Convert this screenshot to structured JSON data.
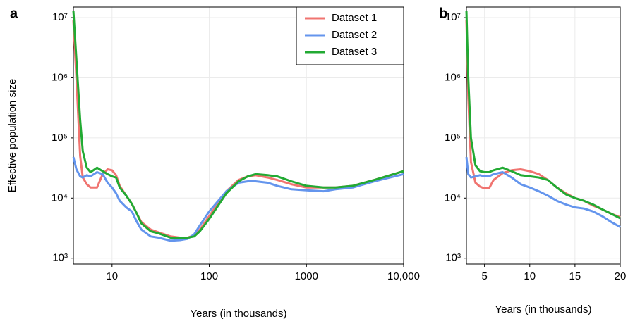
{
  "chart_data": [
    {
      "type": "line",
      "panel_label": "a",
      "xlabel": "Years (in thousands)",
      "ylabel": "Effective population size",
      "xscale": "log",
      "yscale": "log",
      "grid": true,
      "legend": "upper right",
      "xlim": [
        4,
        10000
      ],
      "xticks": [
        10,
        100,
        1000,
        {
          "value": 10000,
          "label": "10,000"
        }
      ],
      "ylim": [
        800,
        15000000
      ],
      "yticks": [
        {
          "value": 1000,
          "label": "10³"
        },
        {
          "value": 10000,
          "label": "10⁴"
        },
        {
          "value": 100000,
          "label": "10⁵"
        },
        {
          "value": 1000000,
          "label": "10⁶"
        },
        {
          "value": 10000000,
          "label": "10⁷"
        }
      ],
      "x": [
        4,
        4.3,
        4.7,
        5,
        5.5,
        6,
        7,
        8,
        9,
        10,
        11,
        12,
        14,
        16,
        18,
        20,
        25,
        30,
        40,
        50,
        60,
        70,
        80,
        100,
        150,
        200,
        250,
        300,
        400,
        500,
        700,
        1000,
        1500,
        2000,
        3000,
        5000,
        10000
      ],
      "series": [
        {
          "name": "Dataset 1",
          "color": "#f07470",
          "values": [
            9000000,
            1000000,
            50000,
            22000,
            17000,
            15000,
            15000,
            25000,
            30000,
            29000,
            24000,
            16000,
            11000,
            8000,
            5500,
            4000,
            3000,
            2700,
            2300,
            2200,
            2200,
            2400,
            3000,
            5000,
            13000,
            20000,
            23000,
            24000,
            22000,
            20000,
            17000,
            15000,
            15000,
            15000,
            16000,
            20000,
            28000
          ]
        },
        {
          "name": "Dataset 2",
          "color": "#6495ed",
          "values": [
            48000,
            30000,
            23000,
            22000,
            24000,
            23000,
            27000,
            25000,
            18000,
            15000,
            12000,
            9000,
            7000,
            6000,
            4000,
            3000,
            2300,
            2200,
            1950,
            2000,
            2100,
            2500,
            3500,
            6000,
            13000,
            18000,
            19000,
            19000,
            18000,
            16000,
            14000,
            13500,
            13000,
            14000,
            15000,
            19000,
            25000
          ]
        },
        {
          "name": "Dataset 3",
          "color": "#22aa33",
          "values": [
            13000000,
            2000000,
            200000,
            60000,
            32000,
            27000,
            32000,
            28000,
            25000,
            23000,
            22000,
            15000,
            11000,
            8000,
            5500,
            3800,
            2800,
            2600,
            2200,
            2200,
            2200,
            2300,
            2800,
            4500,
            12000,
            19000,
            23000,
            25000,
            24000,
            23000,
            19000,
            16000,
            15000,
            15000,
            16000,
            20000,
            28000
          ]
        }
      ]
    },
    {
      "type": "line",
      "panel_label": "b",
      "xlabel": "Years (in thousands)",
      "xscale": "linear",
      "yscale": "log",
      "grid": true,
      "xlim": [
        3,
        20
      ],
      "xticks": [
        5,
        10,
        15,
        20
      ],
      "ylim": [
        800,
        15000000
      ],
      "yticks": [
        {
          "value": 1000,
          "label": "10³"
        },
        {
          "value": 10000,
          "label": "10⁴"
        },
        {
          "value": 100000,
          "label": "10⁵"
        },
        {
          "value": 1000000,
          "label": "10⁶"
        },
        {
          "value": 10000000,
          "label": "10⁷"
        }
      ],
      "x": [
        3,
        3.2,
        3.5,
        4,
        4.5,
        5,
        5.5,
        6,
        7,
        8,
        9,
        10,
        11,
        12,
        13,
        14,
        15,
        16,
        17,
        18,
        19,
        20
      ],
      "series": [
        {
          "name": "Dataset 1",
          "color": "#f07470",
          "values": [
            9000000,
            500000,
            40000,
            18000,
            15500,
            14500,
            14500,
            20000,
            26000,
            29000,
            30000,
            28000,
            25000,
            20000,
            15000,
            12000,
            10000,
            9000,
            7500,
            6500,
            5500,
            4800
          ]
        },
        {
          "name": "Dataset 2",
          "color": "#6495ed",
          "values": [
            48000,
            25000,
            22000,
            23000,
            24000,
            23000,
            23000,
            25000,
            27000,
            22000,
            17000,
            15000,
            13000,
            11000,
            9000,
            7800,
            7000,
            6700,
            6000,
            5000,
            4000,
            3300
          ]
        },
        {
          "name": "Dataset 3",
          "color": "#22aa33",
          "values": [
            13000000,
            1000000,
            100000,
            35000,
            28000,
            27000,
            27000,
            29000,
            32000,
            28000,
            24000,
            23000,
            22000,
            20000,
            15000,
            11500,
            10000,
            9000,
            7800,
            6500,
            5500,
            4600
          ]
        }
      ]
    }
  ]
}
